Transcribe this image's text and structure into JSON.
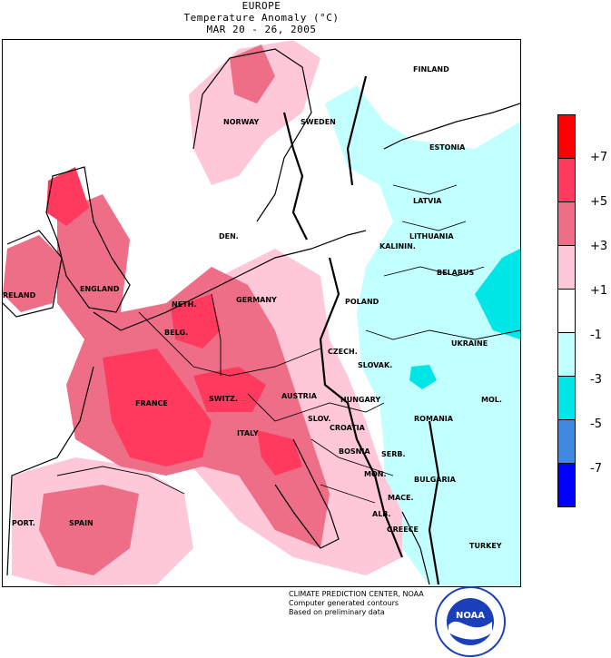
{
  "title": {
    "line1": "EUROPE",
    "line2": "Temperature Anomaly (°C)",
    "line3": "MAR 20 - 26, 2005"
  },
  "countries": [
    {
      "key": "finland",
      "label": "FINLAND"
    },
    {
      "key": "norway",
      "label": "NORWAY"
    },
    {
      "key": "sweden",
      "label": "SWEDEN"
    },
    {
      "key": "estonia",
      "label": "ESTONIA"
    },
    {
      "key": "latvia",
      "label": "LATVIA"
    },
    {
      "key": "lithuania",
      "label": "LITHUANIA"
    },
    {
      "key": "den",
      "label": "DEN."
    },
    {
      "key": "kalinin",
      "label": "KALININ."
    },
    {
      "key": "belarus",
      "label": "BELARUS"
    },
    {
      "key": "ireland",
      "label": "RELAND"
    },
    {
      "key": "england",
      "label": "ENGLAND"
    },
    {
      "key": "germany",
      "label": "GERMANY"
    },
    {
      "key": "poland",
      "label": "POLAND"
    },
    {
      "key": "neth",
      "label": "NETH."
    },
    {
      "key": "belg",
      "label": "BELG."
    },
    {
      "key": "czech",
      "label": "CZECH."
    },
    {
      "key": "ukraine",
      "label": "UKRAINE"
    },
    {
      "key": "slovak",
      "label": "SLOVAK."
    },
    {
      "key": "france",
      "label": "FRANCE"
    },
    {
      "key": "switz",
      "label": "SWITZ."
    },
    {
      "key": "austria",
      "label": "AUSTRIA"
    },
    {
      "key": "hungary",
      "label": "HUNGARY"
    },
    {
      "key": "mol",
      "label": "MOL."
    },
    {
      "key": "slov",
      "label": "SLOV."
    },
    {
      "key": "croatia",
      "label": "CROATIA"
    },
    {
      "key": "romania",
      "label": "ROMANIA"
    },
    {
      "key": "italy",
      "label": "ITALY"
    },
    {
      "key": "bosnia",
      "label": "BOSNIA"
    },
    {
      "key": "serb",
      "label": "SERB."
    },
    {
      "key": "mon",
      "label": "MON."
    },
    {
      "key": "bulgaria",
      "label": "BULGARIA"
    },
    {
      "key": "mace",
      "label": "MACE."
    },
    {
      "key": "alb",
      "label": "ALB."
    },
    {
      "key": "port",
      "label": "PORT."
    },
    {
      "key": "spain",
      "label": "SPAIN"
    },
    {
      "key": "greece",
      "label": "GREECE"
    },
    {
      "key": "turkey",
      "label": "TURKEY"
    }
  ],
  "legend": {
    "ticks": [
      "+7",
      "+5",
      "+3",
      "+1",
      "-1",
      "-3",
      "-5",
      "-7"
    ],
    "colors": [
      "#ff0000",
      "#ff3a5e",
      "#ee6e88",
      "#ffc8d8",
      "#ffffff",
      "#c2ffff",
      "#00e6e6",
      "#3f8ae0",
      "#0000ff"
    ]
  },
  "colors": {
    "warm5": "#ff3a5e",
    "warm3": "#ee6e88",
    "warm1": "#ffc8d8",
    "neutral": "#ffffff",
    "cool1": "#c2ffff",
    "cool3": "#00e6e6"
  },
  "credits": {
    "line1": "CLIMATE PREDICTION CENTER, NOAA",
    "line2": "Computer generated contours",
    "line3": "Based on preliminary data"
  },
  "logo": {
    "text": "NOAA"
  }
}
